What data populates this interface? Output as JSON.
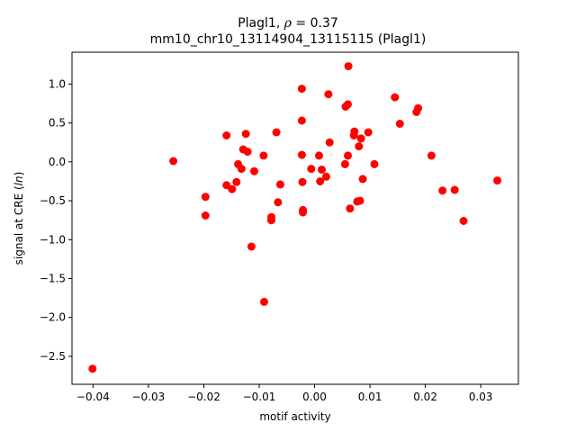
{
  "chart_data": {
    "type": "scatter",
    "title_line1_prefix": "Plagl1, ",
    "title_line1_symbol": "ρ",
    "title_line1_suffix": " = 0.37",
    "title_line2": "mm10_chr10_13114904_13115115 (Plagl1)",
    "xlabel": "motif activity",
    "ylabel_prefix": "signal at CRE (",
    "ylabel_var": "ln",
    "ylabel_suffix": ")",
    "xlim": [
      -0.0438,
      0.0368
    ],
    "ylim": [
      -2.86,
      1.41
    ],
    "xticks": [
      -0.04,
      -0.03,
      -0.02,
      -0.01,
      0.0,
      0.01,
      0.02,
      0.03
    ],
    "xtick_labels": [
      "−0.04",
      "−0.03",
      "−0.02",
      "−0.01",
      "0.00",
      "0.01",
      "0.02",
      "0.03"
    ],
    "yticks": [
      -2.5,
      -2.0,
      -1.5,
      -1.0,
      -0.5,
      0.0,
      0.5,
      1.0
    ],
    "ytick_labels": [
      "−2.5",
      "−2.0",
      "−1.5",
      "−1.0",
      "−0.5",
      "0.0",
      "0.5",
      "1.0"
    ],
    "grid": false,
    "marker_color": "#ff0000",
    "points": [
      {
        "x": -0.0401,
        "y": -2.66
      },
      {
        "x": -0.0255,
        "y": 0.01
      },
      {
        "x": -0.0197,
        "y": -0.45
      },
      {
        "x": -0.0197,
        "y": -0.69
      },
      {
        "x": -0.0159,
        "y": 0.34
      },
      {
        "x": -0.0159,
        "y": -0.3
      },
      {
        "x": -0.0149,
        "y": -0.35
      },
      {
        "x": -0.0141,
        "y": -0.26
      },
      {
        "x": -0.0138,
        "y": -0.03
      },
      {
        "x": -0.0132,
        "y": -0.09
      },
      {
        "x": -0.0129,
        "y": 0.16
      },
      {
        "x": -0.0124,
        "y": 0.36
      },
      {
        "x": -0.0121,
        "y": 0.13
      },
      {
        "x": -0.0114,
        "y": -1.09
      },
      {
        "x": -0.0109,
        "y": -0.12
      },
      {
        "x": -0.0092,
        "y": 0.08
      },
      {
        "x": -0.0091,
        "y": -1.8
      },
      {
        "x": -0.0078,
        "y": -0.71
      },
      {
        "x": -0.0078,
        "y": -0.75
      },
      {
        "x": -0.0069,
        "y": 0.38
      },
      {
        "x": -0.0066,
        "y": -0.52
      },
      {
        "x": -0.0062,
        "y": -0.29
      },
      {
        "x": -0.0023,
        "y": 0.94
      },
      {
        "x": -0.0023,
        "y": 0.53
      },
      {
        "x": -0.0023,
        "y": 0.09
      },
      {
        "x": -0.0022,
        "y": -0.26
      },
      {
        "x": -0.0021,
        "y": -0.62
      },
      {
        "x": -0.0021,
        "y": -0.65
      },
      {
        "x": -0.0006,
        "y": -0.09
      },
      {
        "x": 0.0008,
        "y": 0.08
      },
      {
        "x": 0.001,
        "y": -0.25
      },
      {
        "x": 0.0013,
        "y": -0.1
      },
      {
        "x": 0.0021,
        "y": -0.19
      },
      {
        "x": 0.0025,
        "y": 0.87
      },
      {
        "x": 0.0027,
        "y": 0.25
      },
      {
        "x": 0.0055,
        "y": -0.03
      },
      {
        "x": 0.0056,
        "y": 0.71
      },
      {
        "x": 0.006,
        "y": 0.74
      },
      {
        "x": 0.006,
        "y": 0.08
      },
      {
        "x": 0.0061,
        "y": 1.23
      },
      {
        "x": 0.0064,
        "y": -0.6
      },
      {
        "x": 0.0071,
        "y": 0.34
      },
      {
        "x": 0.0072,
        "y": 0.39
      },
      {
        "x": 0.0077,
        "y": -0.51
      },
      {
        "x": 0.008,
        "y": 0.2
      },
      {
        "x": 0.0082,
        "y": -0.5
      },
      {
        "x": 0.0084,
        "y": 0.3
      },
      {
        "x": 0.0087,
        "y": -0.22
      },
      {
        "x": 0.0097,
        "y": 0.38
      },
      {
        "x": 0.0108,
        "y": -0.03
      },
      {
        "x": 0.0145,
        "y": 0.83
      },
      {
        "x": 0.0154,
        "y": 0.49
      },
      {
        "x": 0.0184,
        "y": 0.64
      },
      {
        "x": 0.0187,
        "y": 0.69
      },
      {
        "x": 0.0211,
        "y": 0.08
      },
      {
        "x": 0.0231,
        "y": -0.37
      },
      {
        "x": 0.0253,
        "y": -0.36
      },
      {
        "x": 0.0269,
        "y": -0.76
      },
      {
        "x": 0.033,
        "y": -0.24
      }
    ]
  }
}
